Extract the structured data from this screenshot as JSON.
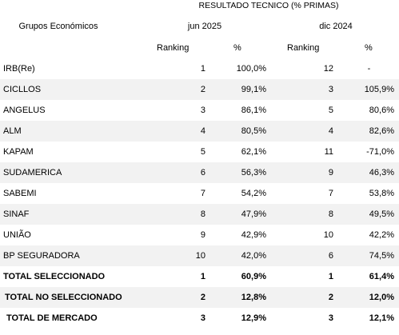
{
  "header": {
    "title": "RESULTADO TECNICO (% PRIMAS)",
    "group_label": "Grupos Económicos",
    "period_1": "jun 2025",
    "period_2": "dic 2024",
    "ranking_label_1": "Ranking",
    "pct_label_1": "%",
    "ranking_label_2": "Ranking",
    "pct_label_2": "%"
  },
  "rows": [
    {
      "name": "IRB(Re)",
      "rank_1": "1",
      "pct_1": "100,0%",
      "rank_2": "12",
      "pct_2": "-"
    },
    {
      "name": "CICLLOS",
      "rank_1": "2",
      "pct_1": "99,1%",
      "rank_2": "3",
      "pct_2": "105,9%"
    },
    {
      "name": "ANGELUS",
      "rank_1": "3",
      "pct_1": "86,1%",
      "rank_2": "5",
      "pct_2": "80,6%"
    },
    {
      "name": "ALM",
      "rank_1": "4",
      "pct_1": "80,5%",
      "rank_2": "4",
      "pct_2": "82,6%"
    },
    {
      "name": "KAPAM",
      "rank_1": "5",
      "pct_1": "62,1%",
      "rank_2": "11",
      "pct_2": "-71,0%"
    },
    {
      "name": "SUDAMERICA",
      "rank_1": "6",
      "pct_1": "56,3%",
      "rank_2": "9",
      "pct_2": "46,3%"
    },
    {
      "name": "SABEMI",
      "rank_1": "7",
      "pct_1": "54,2%",
      "rank_2": "7",
      "pct_2": "53,8%"
    },
    {
      "name": "SINAF",
      "rank_1": "8",
      "pct_1": "47,9%",
      "rank_2": "8",
      "pct_2": "49,5%"
    },
    {
      "name": "UNIÃO",
      "rank_1": "9",
      "pct_1": "42,9%",
      "rank_2": "10",
      "pct_2": "42,2%"
    },
    {
      "name": "BP SEGURADORA",
      "rank_1": "10",
      "pct_1": "42,0%",
      "rank_2": "6",
      "pct_2": "74,5%"
    },
    {
      "name": "TOTAL SELECCIONADO",
      "rank_1": "1",
      "pct_1": "60,9%",
      "rank_2": "1",
      "pct_2": "61,4%"
    },
    {
      "name": "TOTAL NO SELECCIONADO",
      "rank_1": "2",
      "pct_1": "12,8%",
      "rank_2": "2",
      "pct_2": "12,0%"
    },
    {
      "name": "TOTAL DE MERCADO",
      "rank_1": "3",
      "pct_1": "12,9%",
      "rank_2": "3",
      "pct_2": "12,1%"
    }
  ]
}
